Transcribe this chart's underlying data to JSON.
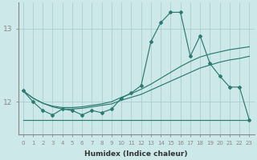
{
  "xlabel": "Humidex (Indice chaleur)",
  "background_color": "#cce8e8",
  "line_color": "#2d7a72",
  "grid_color": "#aacfcf",
  "x_data": [
    0,
    1,
    2,
    3,
    4,
    5,
    6,
    7,
    8,
    9,
    10,
    11,
    12,
    13,
    14,
    15,
    16,
    17,
    18,
    19,
    20,
    21,
    22,
    23
  ],
  "y_main": [
    12.15,
    12.0,
    11.88,
    11.82,
    11.9,
    11.88,
    11.82,
    11.88,
    11.85,
    11.9,
    12.05,
    12.12,
    12.22,
    12.82,
    13.08,
    13.22,
    13.22,
    12.62,
    12.9,
    12.52,
    12.35,
    12.2,
    12.2,
    11.75
  ],
  "y_flat": [
    11.75,
    11.75,
    11.75,
    11.75,
    11.75,
    11.75,
    11.75,
    11.75,
    11.75,
    11.75,
    11.75,
    11.75,
    11.75,
    11.75,
    11.75,
    11.75,
    11.75,
    11.75,
    11.75,
    11.75,
    11.75,
    11.75,
    11.75,
    11.75
  ],
  "y_trend1": [
    12.15,
    12.05,
    11.98,
    11.93,
    11.9,
    11.9,
    11.91,
    11.93,
    11.95,
    11.97,
    12.02,
    12.06,
    12.1,
    12.16,
    12.22,
    12.28,
    12.34,
    12.4,
    12.46,
    12.5,
    12.54,
    12.57,
    12.59,
    12.62
  ],
  "y_trend2": [
    12.15,
    12.05,
    11.98,
    11.94,
    11.92,
    11.92,
    11.93,
    11.95,
    11.97,
    12.0,
    12.06,
    12.11,
    12.17,
    12.24,
    12.32,
    12.4,
    12.48,
    12.55,
    12.61,
    12.65,
    12.68,
    12.71,
    12.73,
    12.75
  ],
  "xlim": [
    -0.5,
    23.5
  ],
  "ylim": [
    11.55,
    13.35
  ],
  "yticks": [
    12,
    13
  ],
  "xticks": [
    0,
    1,
    2,
    3,
    4,
    5,
    6,
    7,
    8,
    9,
    10,
    11,
    12,
    13,
    14,
    15,
    16,
    17,
    18,
    19,
    20,
    21,
    22,
    23
  ]
}
